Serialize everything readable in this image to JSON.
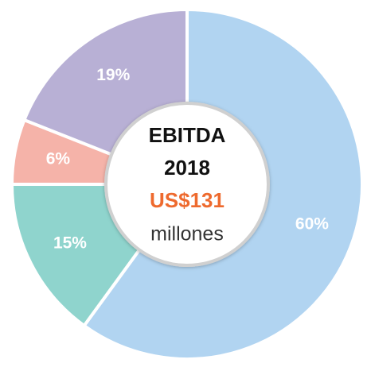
{
  "chart_data": {
    "type": "donut",
    "values": [
      60,
      15,
      6,
      19
    ],
    "value_labels": [
      "60%",
      "15%",
      "6%",
      "19%"
    ],
    "colors": [
      "#b1d4f1",
      "#8fd4cd",
      "#f5b3a9",
      "#b8b0d5"
    ],
    "center_lines": [
      "EBITDA",
      "2018",
      "US$131",
      "millones"
    ],
    "center_colors": [
      "#111111",
      "#111111",
      "#ee6a2e",
      "#333333"
    ]
  }
}
